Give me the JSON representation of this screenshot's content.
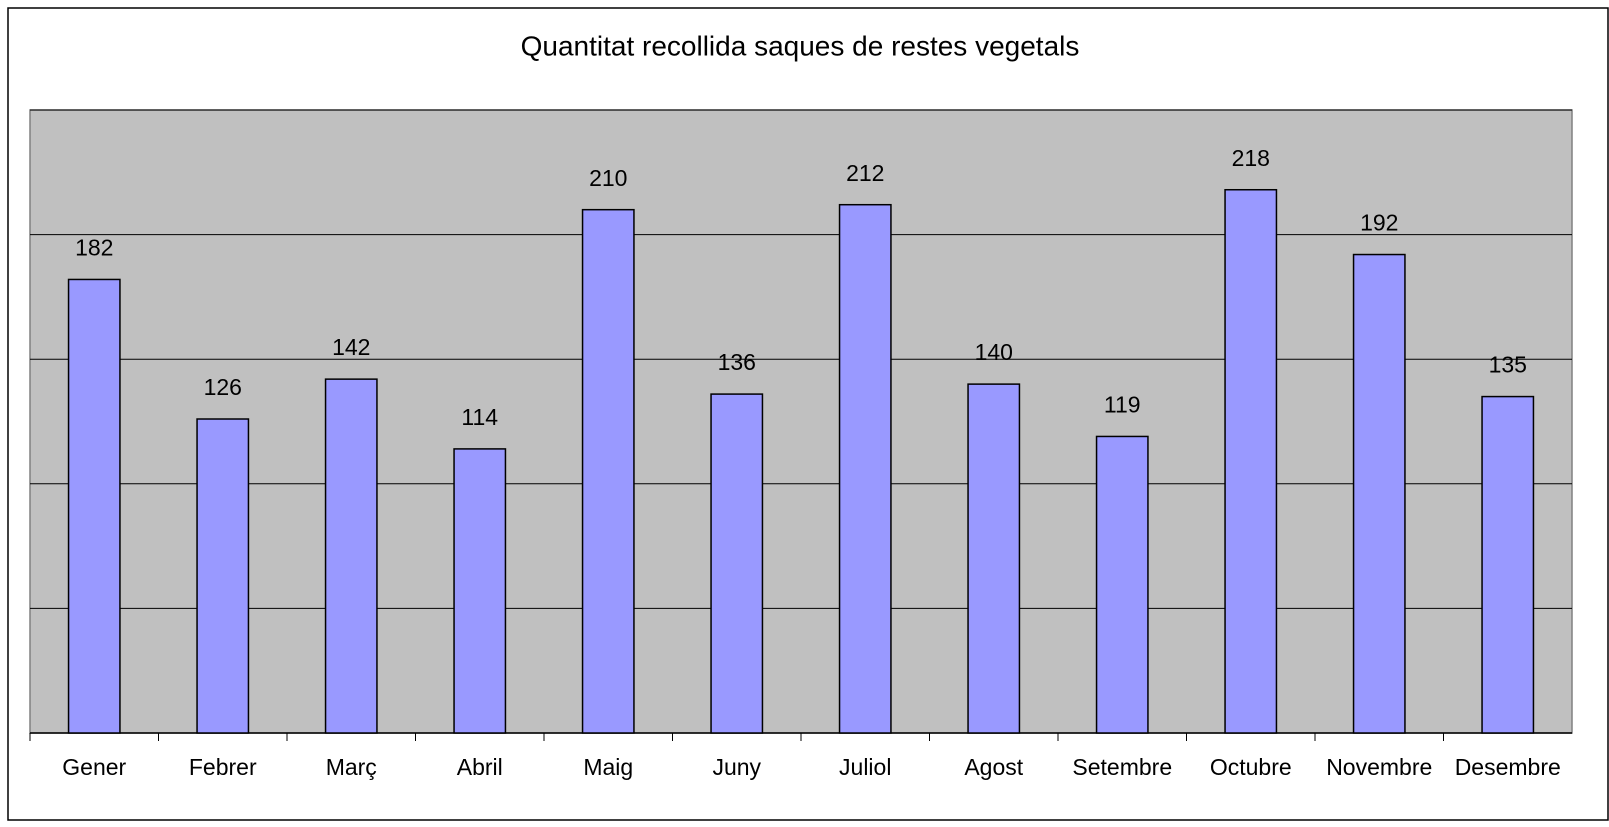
{
  "chart_data": {
    "type": "bar",
    "title": "Quantitat recollida saques de restes vegetals",
    "categories": [
      "Gener",
      "Febrer",
      "Març",
      "Abril",
      "Maig",
      "Juny",
      "Juliol",
      "Agost",
      "Setembre",
      "Octubre",
      "Novembre",
      "Desembre"
    ],
    "values": [
      182,
      126,
      142,
      114,
      210,
      136,
      212,
      140,
      119,
      218,
      192,
      135
    ],
    "color": "#9999ff",
    "background": "#c0c0c0",
    "ylim": [
      0,
      250
    ],
    "yticks": [
      0,
      50,
      100,
      150,
      200,
      250
    ],
    "grid": true
  }
}
